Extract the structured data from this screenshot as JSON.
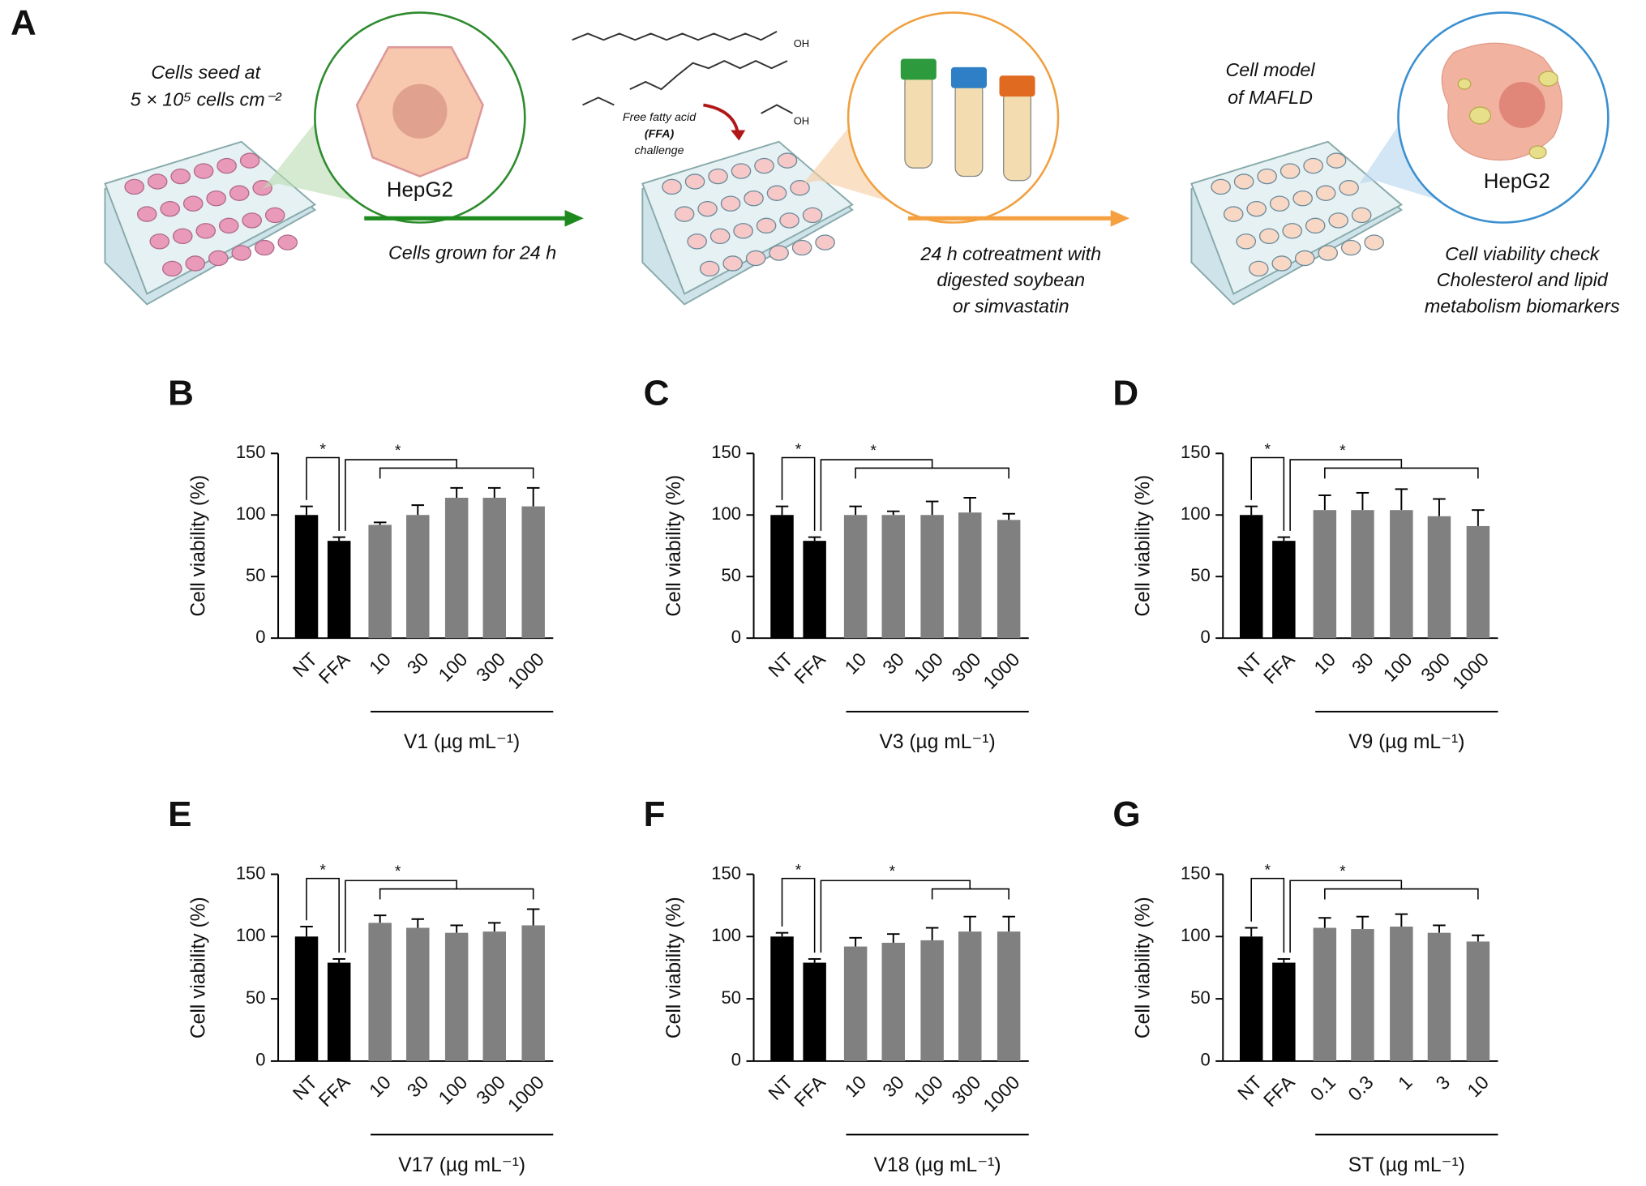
{
  "figure_a": {
    "label": "A",
    "step1": [
      "Cells seed at",
      "5 × 10⁵ cells cm⁻²"
    ],
    "cell1": "HepG2",
    "arrow1": "Cells grown for 24 h",
    "ffa": [
      "Free fatty acid",
      "(FFA)",
      "challenge"
    ],
    "oh": [
      "OH",
      "OH"
    ],
    "step3": [
      "Cell model",
      "of MAFLD"
    ],
    "cell2": "HepG2",
    "arrow2": [
      "24 h cotreatment with",
      "digested soybean",
      "or simvastatin"
    ],
    "readout": [
      "Cell viability check",
      "Cholesterol and lipid",
      "metabolism biomarkers"
    ]
  },
  "chart_data": [
    {
      "type": "bar",
      "panel": "B",
      "ylabel": "Cell viability (%)",
      "group_label": "V1 (µg mL⁻¹)",
      "categories": [
        "NT",
        "FFA",
        "10",
        "30",
        "100",
        "300",
        "1000"
      ],
      "values": [
        100,
        79,
        92,
        100,
        114,
        114,
        107
      ],
      "errors": [
        7,
        3,
        2,
        8,
        8,
        8,
        15
      ],
      "colors": [
        "#000000",
        "#000000",
        "#808080",
        "#808080",
        "#808080",
        "#808080",
        "#808080"
      ],
      "ylim": [
        0,
        150
      ],
      "yticks": [
        0,
        50,
        100,
        150
      ],
      "annotations": [
        "*",
        "*"
      ]
    },
    {
      "type": "bar",
      "panel": "C",
      "ylabel": "Cell viability (%)",
      "group_label": "V3 (µg mL⁻¹)",
      "categories": [
        "NT",
        "FFA",
        "10",
        "30",
        "100",
        "300",
        "1000"
      ],
      "values": [
        100,
        79,
        100,
        100,
        100,
        102,
        96
      ],
      "errors": [
        7,
        3,
        7,
        3,
        11,
        12,
        5
      ],
      "colors": [
        "#000000",
        "#000000",
        "#808080",
        "#808080",
        "#808080",
        "#808080",
        "#808080"
      ],
      "ylim": [
        0,
        150
      ],
      "yticks": [
        0,
        50,
        100,
        150
      ],
      "annotations": [
        "*",
        "*"
      ]
    },
    {
      "type": "bar",
      "panel": "D",
      "ylabel": "Cell viability (%)",
      "group_label": "V9 (µg mL⁻¹)",
      "categories": [
        "NT",
        "FFA",
        "10",
        "30",
        "100",
        "300",
        "1000"
      ],
      "values": [
        100,
        79,
        104,
        104,
        104,
        99,
        91
      ],
      "errors": [
        7,
        3,
        12,
        14,
        17,
        14,
        13
      ],
      "colors": [
        "#000000",
        "#000000",
        "#808080",
        "#808080",
        "#808080",
        "#808080",
        "#808080"
      ],
      "ylim": [
        0,
        150
      ],
      "yticks": [
        0,
        50,
        100,
        150
      ],
      "annotations": [
        "*",
        "*"
      ]
    },
    {
      "type": "bar",
      "panel": "E",
      "ylabel": "Cell viability (%)",
      "group_label": "V17 (µg mL⁻¹)",
      "categories": [
        "NT",
        "FFA",
        "10",
        "30",
        "100",
        "300",
        "1000"
      ],
      "values": [
        100,
        79,
        111,
        107,
        103,
        104,
        109
      ],
      "errors": [
        8,
        3,
        6,
        7,
        6,
        7,
        13
      ],
      "colors": [
        "#000000",
        "#000000",
        "#808080",
        "#808080",
        "#808080",
        "#808080",
        "#808080"
      ],
      "ylim": [
        0,
        150
      ],
      "yticks": [
        0,
        50,
        100,
        150
      ],
      "annotations": [
        "*",
        "*"
      ]
    },
    {
      "type": "bar",
      "panel": "F",
      "ylabel": "Cell viability (%)",
      "group_label": "V18 (µg mL⁻¹)",
      "categories": [
        "NT",
        "FFA",
        "10",
        "30",
        "100",
        "300",
        "1000"
      ],
      "values": [
        100,
        79,
        92,
        95,
        97,
        104,
        104
      ],
      "errors": [
        3,
        3,
        7,
        7,
        10,
        12,
        12
      ],
      "colors": [
        "#000000",
        "#000000",
        "#808080",
        "#808080",
        "#808080",
        "#808080",
        "#808080"
      ],
      "ylim": [
        0,
        150
      ],
      "yticks": [
        0,
        50,
        100,
        150
      ],
      "annotations": [
        "*",
        "*"
      ]
    },
    {
      "type": "bar",
      "panel": "G",
      "ylabel": "Cell viability (%)",
      "group_label": "ST (µg mL⁻¹)",
      "categories": [
        "NT",
        "FFA",
        "0.1",
        "0.3",
        "1",
        "3",
        "10"
      ],
      "values": [
        100,
        79,
        107,
        106,
        108,
        103,
        96
      ],
      "errors": [
        7,
        3,
        8,
        10,
        10,
        6,
        5
      ],
      "colors": [
        "#000000",
        "#000000",
        "#808080",
        "#808080",
        "#808080",
        "#808080",
        "#808080"
      ],
      "ylim": [
        0,
        150
      ],
      "yticks": [
        0,
        50,
        100,
        150
      ],
      "annotations": [
        "*",
        "*"
      ]
    }
  ]
}
